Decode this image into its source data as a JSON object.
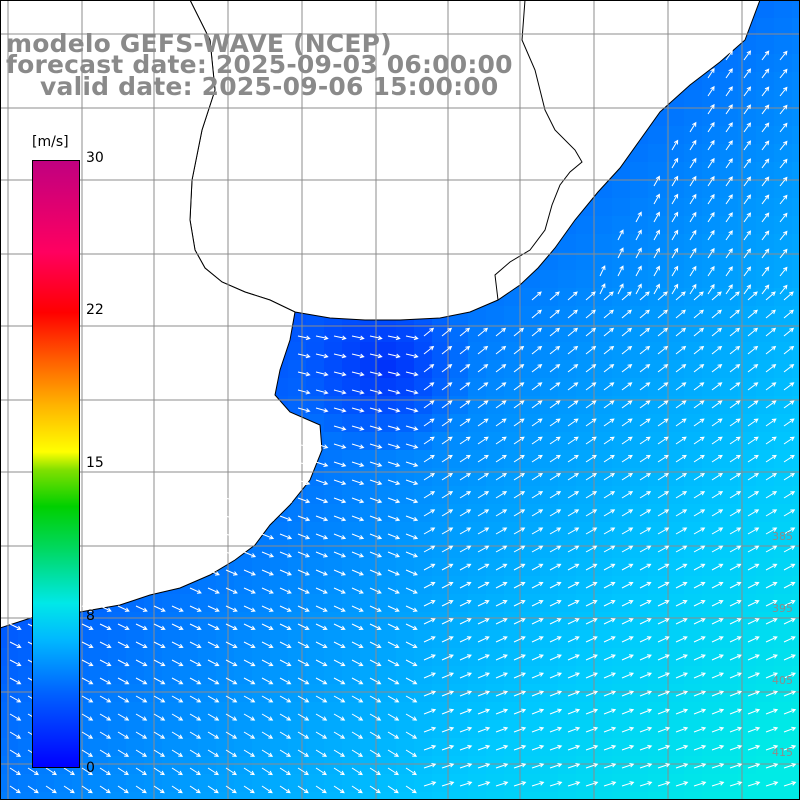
{
  "title": {
    "line1": "modelo GEFS-WAVE (NCEP)",
    "line2": "forecast date: 2025-09-03 06:00:00",
    "line3": "valid date: 2025-09-06 15:00:00"
  },
  "colorbar": {
    "unit": "[m/s]",
    "min": 0,
    "max": 30,
    "ticks": [
      "0",
      "8",
      "15",
      "22",
      "30"
    ]
  },
  "colors": {
    "land": "#ffffff",
    "coastline": "#000000",
    "grid": "#8c8c8c",
    "arrow": "#ffffff",
    "title": "#8a8a8a"
  },
  "field": {
    "variable": "wind speed",
    "range_shown": [
      0,
      12
    ]
  },
  "edge_labels": [
    "385",
    "395",
    "405",
    "415"
  ]
}
